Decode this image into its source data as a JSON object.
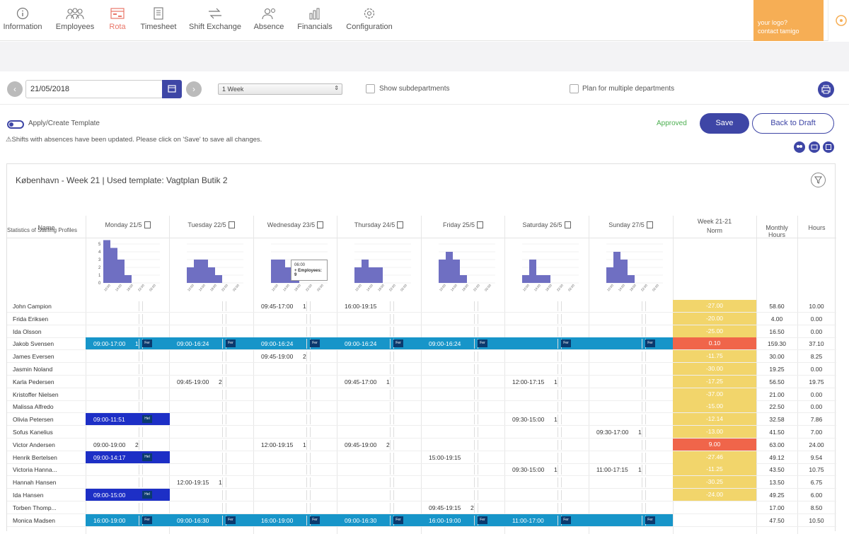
{
  "nav": {
    "items": [
      {
        "label": "Information",
        "icon": "info-icon"
      },
      {
        "label": "Employees",
        "icon": "people-icon"
      },
      {
        "label": "Rota",
        "icon": "rota-icon",
        "active": true
      },
      {
        "label": "Timesheet",
        "icon": "timesheet-icon"
      },
      {
        "label": "Shift Exchange",
        "icon": "exchange-icon"
      },
      {
        "label": "Absence",
        "icon": "absence-icon"
      },
      {
        "label": "Financials",
        "icon": "financials-icon"
      },
      {
        "label": "Configuration",
        "icon": "gear-icon"
      }
    ],
    "logo_line1": "your logo?",
    "logo_line2": "contact tamigo"
  },
  "toolbar": {
    "date": "21/05/2018",
    "period": "1 Week",
    "show_subdepartments": "Show subdepartments",
    "plan_multiple": "Plan for multiple departments"
  },
  "actions": {
    "template_toggle": "Apply/Create Template",
    "warning": "⚠Shifts with absences have been updated. Please click on 'Save' to save all changes.",
    "status": "Approved",
    "save": "Save",
    "back_to_draft": "Back to Draft"
  },
  "panel": {
    "title": "København - Week 21 | Used template: Vagtplan Butik 2",
    "col_name": "Name",
    "days": [
      "Monday 21/5",
      "Tuesday 22/5",
      "Wednesday 23/5",
      "Thursday 24/5",
      "Friday 25/5",
      "Saturday 26/5",
      "Sunday 27/5"
    ],
    "col_week": "Week 21-21",
    "col_norm": "Norm",
    "col_monthly": "Monthly Hours",
    "col_hours": "Hours",
    "stats_label": "Statistics of Staffing Profiles",
    "tooltip_time": "06:00",
    "tooltip_text": "+ Employees: 9"
  },
  "chart_data": {
    "type": "bar",
    "y_ticks": [
      0,
      1,
      2,
      3,
      4,
      5
    ],
    "x_ticks": [
      "10:00",
      "14:00",
      "18:00",
      "22:00",
      "02:00"
    ],
    "series": [
      {
        "day": "Monday 21/5",
        "values": [
          5.5,
          4.5,
          3,
          1,
          0,
          0,
          0
        ]
      },
      {
        "day": "Tuesday 22/5",
        "values": [
          2,
          3,
          3,
          2,
          1,
          0,
          0
        ]
      },
      {
        "day": "Wednesday 23/5",
        "values": [
          3,
          3,
          2,
          1,
          0,
          0,
          0
        ]
      },
      {
        "day": "Thursday 24/5",
        "values": [
          2,
          3,
          2,
          2,
          0,
          0,
          0
        ]
      },
      {
        "day": "Friday 25/5",
        "values": [
          3,
          4,
          3,
          1,
          0,
          0,
          0
        ]
      },
      {
        "day": "Saturday 26/5",
        "values": [
          1,
          3,
          1,
          1,
          0,
          0,
          0
        ]
      },
      {
        "day": "Sunday 27/5",
        "values": [
          2,
          4,
          3,
          1,
          0,
          0,
          0
        ]
      }
    ]
  },
  "colors": {
    "accent": "#3e46a6",
    "band": "#1795c9",
    "norm_yellow": "#f2d56b",
    "norm_red": "#f0654a",
    "absence": "#1d2fc6"
  },
  "rows": [
    {
      "name": "John Campion",
      "norm": "-27.00",
      "norm_color": "yellow",
      "monthly": "58.60",
      "hours": "10.00",
      "shifts": [
        {
          "day": 2,
          "time": "09:45-17:00",
          "count": "1"
        },
        {
          "day": 3,
          "time": "16:00-19:15",
          "count": ""
        }
      ]
    },
    {
      "name": "Frida Eriksen",
      "norm": "-20.00",
      "norm_color": "yellow",
      "monthly": "4.00",
      "hours": "0.00",
      "shifts": []
    },
    {
      "name": "Ida Olsson",
      "norm": "-25.00",
      "norm_color": "yellow",
      "monthly": "16.50",
      "hours": "0.00",
      "shifts": []
    },
    {
      "name": "Jakob Svensen",
      "norm": "0.10",
      "norm_color": "red",
      "monthly": "159.30",
      "hours": "37.10",
      "band": true,
      "shifts": [
        {
          "day": 0,
          "time": "09:00-17:00",
          "count": "1",
          "tag": "Fer"
        },
        {
          "day": 1,
          "time": "09:00-16:24",
          "count": "",
          "tag": "Fer"
        },
        {
          "day": 2,
          "time": "09:00-16:24",
          "count": "",
          "tag": "Fer"
        },
        {
          "day": 3,
          "time": "09:00-16:24",
          "count": "",
          "tag": "Fer"
        },
        {
          "day": 4,
          "time": "09:00-16:24",
          "count": "",
          "tag": "Fer"
        },
        {
          "day": 5,
          "time": "",
          "count": "",
          "tag": "Fer"
        },
        {
          "day": 6,
          "time": "",
          "count": "",
          "tag": "Fer"
        }
      ]
    },
    {
      "name": "James Eversen",
      "norm": "-11.75",
      "norm_color": "yellow",
      "monthly": "30.00",
      "hours": "8.25",
      "shifts": [
        {
          "day": 2,
          "time": "09:45-19:00",
          "count": "2"
        }
      ]
    },
    {
      "name": "Jasmin Noland",
      "norm": "-30.00",
      "norm_color": "yellow",
      "monthly": "19.25",
      "hours": "0.00",
      "shifts": []
    },
    {
      "name": "Karla Pedersen",
      "norm": "-17.25",
      "norm_color": "yellow",
      "monthly": "56.50",
      "hours": "19.75",
      "shifts": [
        {
          "day": 1,
          "time": "09:45-19:00",
          "count": "2"
        },
        {
          "day": 3,
          "time": "09:45-17:00",
          "count": "1"
        },
        {
          "day": 5,
          "time": "12:00-17:15",
          "count": "1"
        }
      ]
    },
    {
      "name": "Kristoffer Nielsen",
      "norm": "-37.00",
      "norm_color": "yellow",
      "monthly": "21.00",
      "hours": "0.00",
      "shifts": []
    },
    {
      "name": "Malissa Alfredo",
      "norm": "-15.00",
      "norm_color": "yellow",
      "monthly": "22.50",
      "hours": "0.00",
      "shifts": []
    },
    {
      "name": "Olivia Petersen",
      "norm": "-12.14",
      "norm_color": "yellow",
      "monthly": "32.58",
      "hours": "7.86",
      "shifts": [
        {
          "day": 0,
          "time": "09:00-11:51",
          "count": "",
          "tag": "Hel",
          "absence": true
        },
        {
          "day": 5,
          "time": "09:30-15:00",
          "count": "1"
        }
      ]
    },
    {
      "name": "Sofus Kanelius",
      "norm": "-13.00",
      "norm_color": "yellow",
      "monthly": "41.50",
      "hours": "7.00",
      "shifts": [
        {
          "day": 6,
          "time": "09:30-17:00",
          "count": "1"
        }
      ]
    },
    {
      "name": "Victor Andersen",
      "norm": "9.00",
      "norm_color": "red",
      "monthly": "63.00",
      "hours": "24.00",
      "shifts": [
        {
          "day": 0,
          "time": "09:00-19:00",
          "count": "2"
        },
        {
          "day": 2,
          "time": "12:00-19:15",
          "count": "1"
        },
        {
          "day": 3,
          "time": "09:45-19:00",
          "count": "2"
        }
      ]
    },
    {
      "name": "Henrik Bertelsen",
      "norm": "-27.46",
      "norm_color": "yellow",
      "monthly": "49.12",
      "hours": "9.54",
      "shifts": [
        {
          "day": 0,
          "time": "09:00-14:17",
          "count": "",
          "tag": "Hel",
          "absence": true
        },
        {
          "day": 4,
          "time": "15:00-19:15",
          "count": ""
        }
      ]
    },
    {
      "name": "Victoria Hanna...",
      "norm": "-11.25",
      "norm_color": "yellow",
      "monthly": "43.50",
      "hours": "10.75",
      "shifts": [
        {
          "day": 5,
          "time": "09:30-15:00",
          "count": "1"
        },
        {
          "day": 6,
          "time": "11:00-17:15",
          "count": "1"
        }
      ]
    },
    {
      "name": "Hannah Hansen",
      "norm": "-30.25",
      "norm_color": "yellow",
      "monthly": "13.50",
      "hours": "6.75",
      "shifts": [
        {
          "day": 1,
          "time": "12:00-19:15",
          "count": "1"
        }
      ]
    },
    {
      "name": "Ida Hansen",
      "norm": "-24.00",
      "norm_color": "yellow",
      "monthly": "49.25",
      "hours": "6.00",
      "shifts": [
        {
          "day": 0,
          "time": "09:00-15:00",
          "count": "",
          "tag": "Hel",
          "absence": true
        }
      ]
    },
    {
      "name": "Torben Thomp...",
      "norm": "",
      "norm_color": "none",
      "monthly": "17.00",
      "hours": "8.50",
      "shifts": [
        {
          "day": 4,
          "time": "09:45-19:15",
          "count": "2"
        }
      ]
    },
    {
      "name": "Monica Madsen",
      "norm": "",
      "norm_color": "none",
      "monthly": "47.50",
      "hours": "10.50",
      "band": true,
      "shifts": [
        {
          "day": 0,
          "time": "16:00-19:00",
          "count": "",
          "tag": "Fer"
        },
        {
          "day": 1,
          "time": "09:00-16:30",
          "count": "",
          "tag": "Fer"
        },
        {
          "day": 2,
          "time": "16:00-19:00",
          "count": "",
          "tag": "Fer"
        },
        {
          "day": 3,
          "time": "09:00-16:30",
          "count": "",
          "tag": "Fer"
        },
        {
          "day": 4,
          "time": "16:00-19:00",
          "count": "",
          "tag": "Fer"
        },
        {
          "day": 5,
          "time": "11:00-17:00",
          "count": "",
          "tag": "Fer"
        },
        {
          "day": 6,
          "time": "",
          "count": "",
          "tag": "Fer"
        }
      ]
    }
  ]
}
